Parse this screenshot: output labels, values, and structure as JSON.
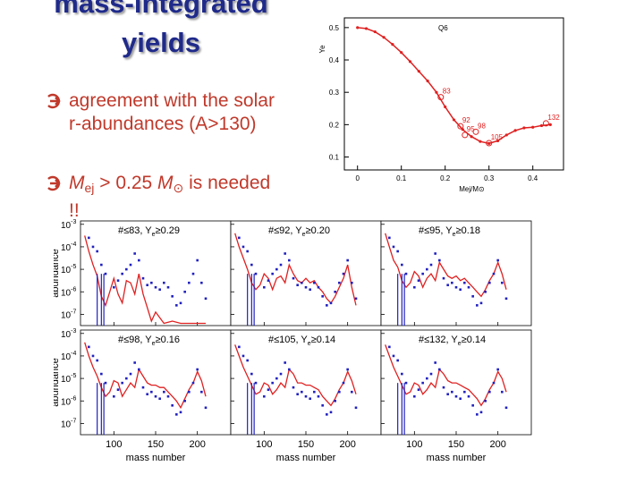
{
  "slide": {
    "title_line1": "mass-integrated",
    "title_line2": "yields",
    "bullet_icon": "circled-right-arrow-icon",
    "bullet1_text": "agreement with the solar r-abundances (A>130)",
    "bullet2": {
      "m": "M",
      "sub": "ej",
      "rel": " > 0.25 ",
      "m2": "M",
      "sun": "⊙",
      "tail": " is needed !!"
    }
  },
  "colors": {
    "title": "#1f2a8a",
    "bullet": "#c0392b",
    "red": "#e02020",
    "blue": "#2020c0"
  },
  "chart_data": [
    {
      "type": "line",
      "title": "Q6",
      "xlabel": "Mej/M⊙",
      "ylabel": "Ye",
      "xlim": [
        -0.03,
        0.47
      ],
      "ylim": [
        0.06,
        0.53
      ],
      "x_ticks": [
        0,
        0.1,
        0.2,
        0.3,
        0.4
      ],
      "y_ticks": [
        0.1,
        0.2,
        0.3,
        0.4,
        0.5
      ],
      "x_tick_labels": [
        "0",
        "0.1",
        "0.2",
        "0.3",
        "0.4"
      ],
      "y_tick_labels": [
        "0.1",
        "0.2",
        "0.3",
        "0.4",
        "0.5"
      ],
      "x": [
        0,
        0.02,
        0.04,
        0.06,
        0.08,
        0.1,
        0.12,
        0.14,
        0.16,
        0.18,
        0.2,
        0.22,
        0.24,
        0.26,
        0.28,
        0.3,
        0.32,
        0.34,
        0.36,
        0.38,
        0.4,
        0.42,
        0.44
      ],
      "y": [
        0.5,
        0.497,
        0.487,
        0.47,
        0.448,
        0.423,
        0.395,
        0.365,
        0.335,
        0.3,
        0.255,
        0.215,
        0.185,
        0.163,
        0.148,
        0.142,
        0.15,
        0.168,
        0.182,
        0.19,
        0.192,
        0.197,
        0.2
      ],
      "annotations": [
        {
          "text": "83",
          "x": 0.19,
          "y": 0.285
        },
        {
          "text": "92",
          "x": 0.235,
          "y": 0.195
        },
        {
          "text": "95",
          "x": 0.245,
          "y": 0.168
        },
        {
          "text": "98",
          "x": 0.27,
          "y": 0.178
        },
        {
          "text": "105",
          "x": 0.3,
          "y": 0.143
        },
        {
          "text": "132",
          "x": 0.43,
          "y": 0.204
        }
      ]
    },
    {
      "type": "scatter",
      "grid_layout": "2x3",
      "xlabel": "mass number",
      "ylabel": "abundance",
      "xlim": [
        60,
        240
      ],
      "ylim_log10": [
        -7.5,
        -2.85
      ],
      "x_ticks": [
        100,
        150,
        200
      ],
      "x_tick_labels": [
        "100",
        "150",
        "200"
      ],
      "y_ticks_log10": [
        -3,
        -4,
        -5,
        -6,
        -7
      ],
      "y_tick_labels": [
        "10",
        "10",
        "10",
        "10",
        "10"
      ],
      "y_tick_exponents": [
        "-3",
        "-4",
        "-5",
        "-6",
        "-7"
      ],
      "panel_labels": [
        {
          "num": "#≤83, Y",
          "sub": "e",
          "val": "≥0.29"
        },
        {
          "num": "#≤92, Y",
          "sub": "e",
          "val": "≥0.20"
        },
        {
          "num": "#≤95, Y",
          "sub": "e",
          "val": "≥0.18"
        },
        {
          "num": "#≤98, Y",
          "sub": "e",
          "val": "≥0.16"
        },
        {
          "num": "#≤105, Y",
          "sub": "e",
          "val": "≥0.14"
        },
        {
          "num": "#≤132, Y",
          "sub": "e",
          "val": "≥0.14"
        }
      ],
      "series": [
        {
          "color": "#2020c0",
          "x": [
            70,
            75,
            80,
            85,
            90,
            100,
            105,
            110,
            115,
            120,
            125,
            130,
            135,
            140,
            145,
            150,
            155,
            160,
            165,
            170,
            175,
            180,
            185,
            190,
            195,
            200,
            205,
            210
          ],
          "log10y": [
            -3.6,
            -4.0,
            -4.2,
            -4.8,
            -5.2,
            -5.8,
            -5.5,
            -5.2,
            -5.0,
            -4.8,
            -4.3,
            -4.6,
            -5.4,
            -5.7,
            -5.6,
            -5.8,
            -5.9,
            -5.6,
            -5.8,
            -6.2,
            -6.6,
            -6.5,
            -6.0,
            -5.6,
            -5.2,
            -4.6,
            -5.6,
            -6.3
          ]
        },
        {
          "color": "#e02020",
          "panels": [
            {
              "x": [
                65,
                70,
                75,
                80,
                85,
                90,
                95,
                100,
                105,
                110,
                115,
                120,
                125,
                130,
                135,
                140,
                145,
                150,
                160,
                170,
                180,
                190,
                200,
                210
              ],
              "log10y": [
                -3.5,
                -4.2,
                -4.8,
                -5.3,
                -6.2,
                -6.6,
                -6.0,
                -5.4,
                -6.1,
                -6.5,
                -5.5,
                -5.6,
                -6.1,
                -5.2,
                -6.1,
                -6.7,
                -7.3,
                -6.9,
                -7.4,
                -7.3,
                -7.4,
                -7.4,
                -7.4,
                -7.4
              ]
            },
            {
              "x": [
                65,
                70,
                75,
                80,
                85,
                90,
                95,
                100,
                105,
                110,
                115,
                120,
                125,
                130,
                135,
                140,
                145,
                150,
                155,
                160,
                165,
                170,
                175,
                180,
                185,
                190,
                195,
                200,
                205,
                210
              ],
              "log10y": [
                -3.4,
                -4.0,
                -4.5,
                -5.0,
                -5.6,
                -5.9,
                -5.7,
                -5.2,
                -5.4,
                -5.9,
                -5.4,
                -5.3,
                -5.6,
                -4.8,
                -5.2,
                -5.5,
                -5.6,
                -5.4,
                -5.6,
                -5.5,
                -5.8,
                -6.0,
                -6.3,
                -6.5,
                -6.2,
                -5.8,
                -5.4,
                -4.8,
                -5.8,
                -6.6
              ]
            },
            {
              "x": [
                65,
                70,
                75,
                80,
                85,
                90,
                95,
                100,
                105,
                110,
                115,
                120,
                125,
                130,
                135,
                140,
                145,
                150,
                155,
                160,
                165,
                170,
                175,
                180,
                185,
                190,
                195,
                200,
                205,
                210
              ],
              "log10y": [
                -3.4,
                -4.0,
                -4.6,
                -4.9,
                -5.5,
                -5.8,
                -5.6,
                -5.1,
                -5.3,
                -5.8,
                -5.4,
                -5.2,
                -5.5,
                -4.7,
                -5.0,
                -5.3,
                -5.4,
                -5.3,
                -5.5,
                -5.4,
                -5.6,
                -5.8,
                -6.0,
                -6.2,
                -5.9,
                -5.5,
                -5.2,
                -4.7,
                -5.2,
                -5.9
              ]
            },
            {
              "x": [
                65,
                70,
                75,
                80,
                85,
                90,
                95,
                100,
                105,
                110,
                115,
                120,
                125,
                130,
                135,
                140,
                145,
                150,
                155,
                160,
                165,
                170,
                175,
                180,
                185,
                190,
                195,
                200,
                205,
                210
              ],
              "log10y": [
                -3.4,
                -4.0,
                -4.5,
                -4.9,
                -5.4,
                -5.8,
                -5.6,
                -5.1,
                -5.2,
                -5.8,
                -5.5,
                -5.2,
                -5.4,
                -4.6,
                -4.9,
                -5.2,
                -5.3,
                -5.3,
                -5.4,
                -5.4,
                -5.6,
                -5.8,
                -6.0,
                -6.3,
                -5.9,
                -5.5,
                -5.2,
                -4.7,
                -5.1,
                -5.8
              ]
            },
            {
              "x": [
                65,
                70,
                75,
                80,
                85,
                90,
                95,
                100,
                105,
                110,
                115,
                120,
                125,
                130,
                135,
                140,
                145,
                150,
                155,
                160,
                165,
                170,
                175,
                180,
                185,
                190,
                195,
                200,
                205,
                210
              ],
              "log10y": [
                -3.5,
                -4.0,
                -4.5,
                -4.9,
                -5.3,
                -5.7,
                -5.6,
                -5.2,
                -5.3,
                -5.7,
                -5.5,
                -5.2,
                -5.4,
                -4.6,
                -4.8,
                -5.2,
                -5.2,
                -5.3,
                -5.3,
                -5.4,
                -5.5,
                -5.8,
                -6.0,
                -6.2,
                -5.9,
                -5.5,
                -5.2,
                -4.7,
                -5.1,
                -5.7
              ]
            },
            {
              "x": [
                65,
                70,
                75,
                80,
                85,
                90,
                95,
                100,
                105,
                110,
                115,
                120,
                125,
                130,
                135,
                140,
                145,
                150,
                155,
                160,
                165,
                170,
                175,
                180,
                185,
                190,
                195,
                200,
                205,
                210
              ],
              "log10y": [
                -3.5,
                -4.0,
                -4.5,
                -4.9,
                -5.3,
                -5.7,
                -5.6,
                -5.2,
                -5.3,
                -5.7,
                -5.5,
                -5.2,
                -5.4,
                -4.6,
                -4.8,
                -5.1,
                -5.2,
                -5.2,
                -5.3,
                -5.4,
                -5.5,
                -5.7,
                -5.9,
                -6.2,
                -5.9,
                -5.5,
                -5.2,
                -4.7,
                -5.0,
                -5.6
              ]
            }
          ]
        }
      ]
    }
  ]
}
